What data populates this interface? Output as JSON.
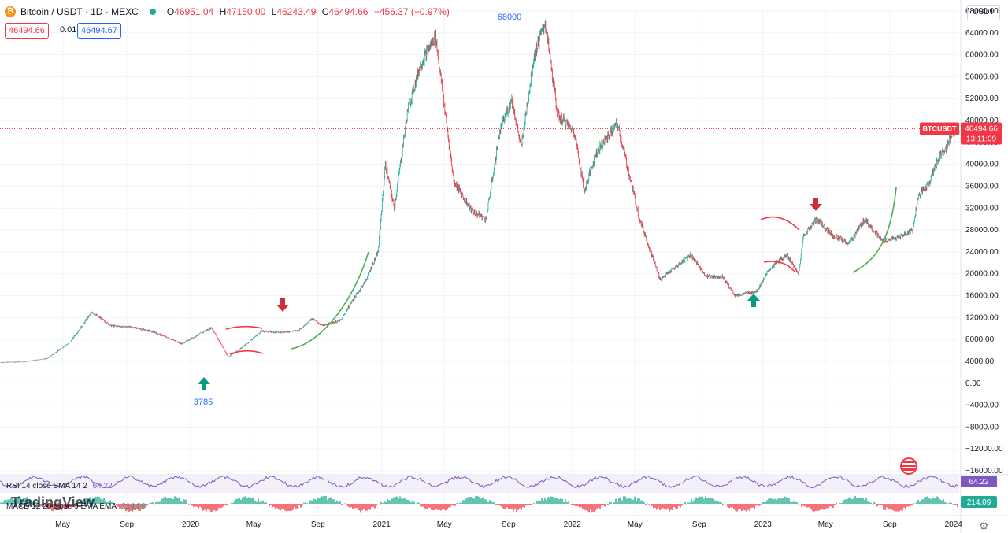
{
  "header": {
    "symbol_title": "Bitcoin / USDT · 1D · MEXC",
    "ohlc": [
      {
        "k": "O",
        "v": "46951.04"
      },
      {
        "k": "H",
        "v": "47150.00"
      },
      {
        "k": "L",
        "v": "46243.49"
      },
      {
        "k": "C",
        "v": "46494.66"
      }
    ],
    "change": "−456.37 (−0.97%)",
    "bid": "46494.66",
    "spread": "0.01",
    "ask": "46494.67",
    "currency": "USDT"
  },
  "colors": {
    "up": "#22ab94",
    "down": "#f23645",
    "accent": "#2962ff",
    "trend": "#4caf50",
    "rsi": "#7e57c2",
    "annot": "#f23645"
  },
  "annotations": {
    "low_label": "3785",
    "high_label": "68000"
  },
  "badges": {
    "symbol": "BTCUSDT",
    "price": "46494.66",
    "timer": "13:11:09",
    "rsi": "64.22",
    "macd": "214.09"
  },
  "indicators": {
    "rsi_label": "RSI 14 close SMA 14 2",
    "rsi_value": "64.22",
    "macd_label": "MACD 12 26 close 9 EMA EMA",
    "macd_value": "214.09"
  },
  "watermark": "TradingView",
  "chart_data": {
    "type": "candlestick",
    "title": "Bitcoin / USDT · 1D · MEXC",
    "ylim": [
      -16000,
      68000
    ],
    "y_ticks": [
      "68000.00",
      "64000.00",
      "60000.00",
      "56000.00",
      "52000.00",
      "48000.00",
      "44000.00",
      "40000.00",
      "36000.00",
      "32000.00",
      "28000.00",
      "24000.00",
      "20000.00",
      "16000.00",
      "12000.00",
      "8000.00",
      "4000.00",
      "0.00",
      "−4000.00",
      "−8000.00",
      "−12000.00",
      "−16000.00"
    ],
    "x_ticks": [
      "May",
      "Sep",
      "2020",
      "May",
      "Sep",
      "2021",
      "May",
      "Sep",
      "2022",
      "May",
      "Sep",
      "2023",
      "May",
      "Sep",
      "2024"
    ],
    "x_tick_dates": [
      "2019-05-01",
      "2019-09-01",
      "2020-01-01",
      "2020-05-01",
      "2020-09-01",
      "2021-01-01",
      "2021-05-01",
      "2021-09-01",
      "2022-01-01",
      "2022-05-01",
      "2022-09-01",
      "2023-01-01",
      "2023-05-01",
      "2023-09-01",
      "2024-01-01"
    ],
    "series": [
      {
        "x": [
          "2019-01-01",
          "2019-02-15",
          "2019-04-01",
          "2019-05-15",
          "2019-06-26",
          "2019-08-01",
          "2019-09-15",
          "2019-10-25",
          "2019-12-15",
          "2020-02-10",
          "2020-03-13",
          "2020-04-15",
          "2020-05-15",
          "2020-06-20",
          "2020-07-25",
          "2020-08-20",
          "2020-09-10",
          "2020-10-15",
          "2020-11-05",
          "2020-11-30",
          "2020-12-25",
          "2021-01-08",
          "2021-01-25",
          "2021-02-20",
          "2021-03-15",
          "2021-04-14",
          "2021-05-19",
          "2021-06-22",
          "2021-07-20",
          "2021-08-15",
          "2021-09-07",
          "2021-09-25",
          "2021-10-20",
          "2021-11-10",
          "2021-12-04",
          "2022-01-05",
          "2022-01-24",
          "2022-02-15",
          "2022-03-28",
          "2022-05-10",
          "2022-06-18",
          "2022-07-15",
          "2022-08-15",
          "2022-09-15",
          "2022-10-15",
          "2022-11-09",
          "2022-12-20",
          "2023-01-15",
          "2023-02-15",
          "2023-03-10",
          "2023-03-20",
          "2023-04-14",
          "2023-05-15",
          "2023-06-15",
          "2023-07-15",
          "2023-08-17",
          "2023-09-15",
          "2023-10-15",
          "2023-10-25",
          "2023-11-15",
          "2023-12-05",
          "2023-12-20",
          "2024-01-03"
        ],
        "y": [
          3800,
          3900,
          4500,
          7500,
          13000,
          10500,
          10200,
          9300,
          7200,
          10200,
          4800,
          7000,
          9500,
          9300,
          9600,
          11800,
          10500,
          11500,
          15000,
          18500,
          24000,
          40000,
          32000,
          50000,
          58000,
          63500,
          37000,
          31500,
          30000,
          46000,
          52000,
          43000,
          60000,
          66000,
          49000,
          46000,
          35000,
          42000,
          47500,
          30000,
          19000,
          21000,
          23500,
          19500,
          19500,
          16000,
          16800,
          21000,
          23500,
          20000,
          27000,
          30000,
          27000,
          25500,
          30000,
          26000,
          26500,
          28000,
          34000,
          36500,
          41500,
          43500,
          46494
        ]
      }
    ],
    "trend_lines": [
      "uptrend-2020",
      "uptrend-2021",
      "uptrend-2023"
    ],
    "markers": [
      {
        "type": "buy",
        "date": "2020-03-13"
      },
      {
        "type": "sell",
        "date": "2020-08-20"
      },
      {
        "type": "buy",
        "date": "2023-03-10"
      },
      {
        "type": "sell",
        "date": "2023-06-25"
      }
    ]
  }
}
